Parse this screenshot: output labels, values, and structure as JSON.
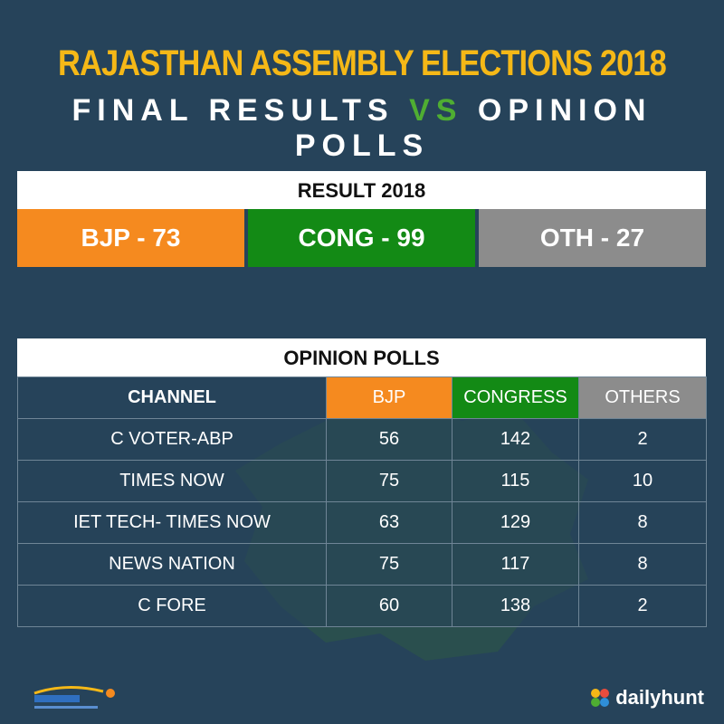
{
  "title": {
    "line1": "RAJASTHAN ASSEMBLY ELECTIONS 2018",
    "line2_part1": "FINAL RESULTS ",
    "line2_vs": "VS",
    "line2_part2": " OPINION POLLS"
  },
  "result": {
    "header": "RESULT 2018",
    "bjp": "BJP - 73",
    "cong": "CONG - 99",
    "oth": "OTH - 27"
  },
  "polls": {
    "header": "OPINION POLLS",
    "columns": [
      "CHANNEL",
      "BJP",
      "CONGRESS",
      "OTHERS"
    ],
    "rows": [
      [
        "C VOTER-ABP",
        "56",
        "142",
        "2"
      ],
      [
        "TIMES NOW",
        "75",
        "115",
        "10"
      ],
      [
        "IET TECH- TIMES NOW",
        "63",
        "129",
        "8"
      ],
      [
        "NEWS NATION",
        "75",
        "117",
        "8"
      ],
      [
        "C FORE",
        "60",
        "138",
        "2"
      ]
    ]
  },
  "footer": {
    "brand": "dailyhunt"
  },
  "colors": {
    "background": "#26435a",
    "title_yellow": "#f5b817",
    "bjp_orange": "#f58a1f",
    "congress_green": "#138a15",
    "others_gray": "#8c8c8c",
    "vs_green": "#4fae32"
  }
}
